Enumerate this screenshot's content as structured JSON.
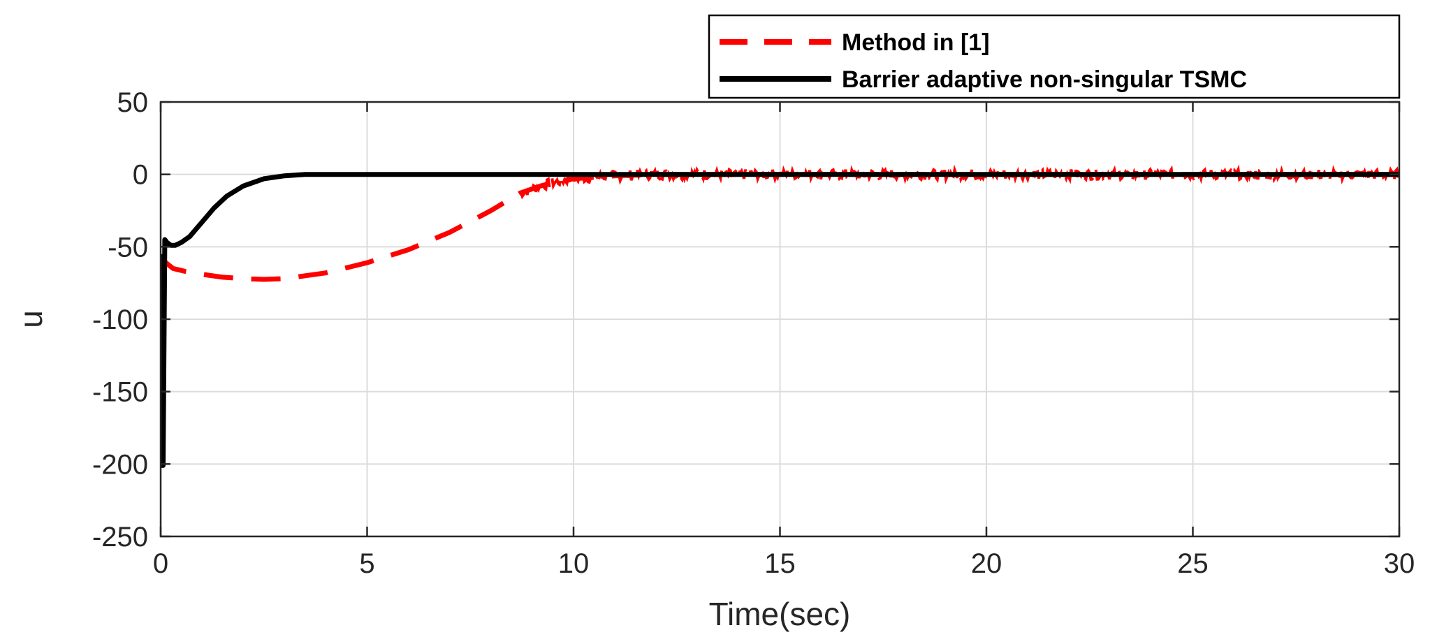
{
  "chart_data": {
    "type": "line",
    "title": "",
    "xlabel": "Time(sec)",
    "ylabel": "u",
    "xlim": [
      0,
      30
    ],
    "ylim": [
      -250,
      50
    ],
    "x_ticks": [
      0,
      5,
      10,
      15,
      20,
      25,
      30
    ],
    "y_ticks": [
      50,
      0,
      -50,
      -100,
      -150,
      -200,
      -250
    ],
    "grid": true,
    "legend_position": "top-right-outside",
    "series": [
      {
        "name": "Method in [1]",
        "color": "#ff0000",
        "style": "dashed",
        "x": [
          0,
          0.3,
          0.6,
          1,
          1.5,
          2,
          2.5,
          3,
          3.5,
          4,
          5,
          6,
          7,
          8,
          8.7,
          9.2,
          9.6,
          10,
          10.5,
          11,
          12,
          14,
          16,
          18,
          20,
          22,
          24,
          26,
          28,
          30
        ],
        "y": [
          -58,
          -65,
          -67,
          -69,
          -71,
          -72,
          -72.5,
          -72,
          -70,
          -68,
          -61,
          -52,
          -40,
          -25,
          -13,
          -8,
          -5,
          -3,
          -2,
          -1,
          0,
          0,
          0,
          0,
          0,
          0,
          0,
          0,
          0,
          0
        ],
        "noise_start_x": 8.7
      },
      {
        "name": "Barrier adaptive non-singular TSMC",
        "color": "#000000",
        "style": "solid",
        "x": [
          0,
          0.02,
          0.06,
          0.1,
          0.15,
          0.25,
          0.35,
          0.5,
          0.7,
          1,
          1.3,
          1.6,
          2,
          2.5,
          3,
          3.5,
          4,
          5,
          10,
          15,
          20,
          25,
          30
        ],
        "y": [
          -55,
          -201,
          -201,
          -45,
          -47,
          -49,
          -49,
          -47,
          -43,
          -33,
          -23,
          -15,
          -8,
          -3,
          -1,
          0,
          0,
          0,
          0,
          0,
          0,
          0,
          0
        ]
      }
    ]
  }
}
